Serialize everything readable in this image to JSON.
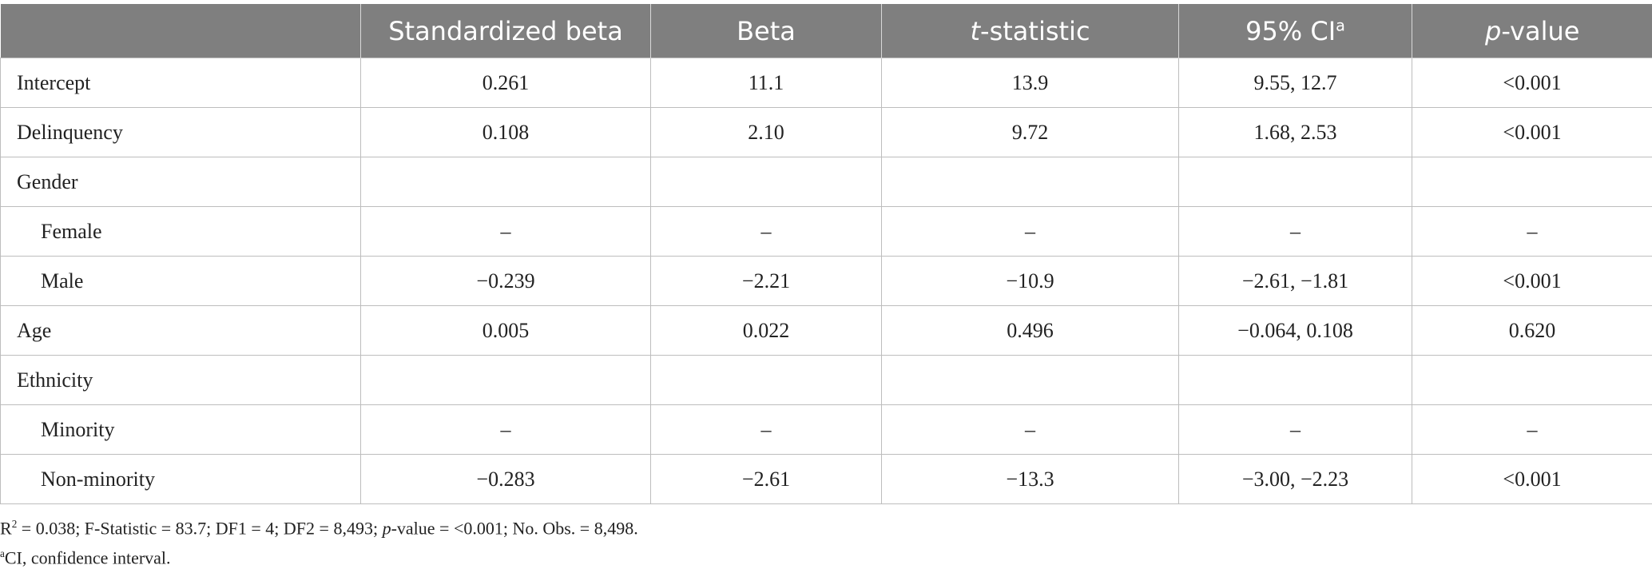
{
  "table": {
    "header": [
      {
        "text": "Standardized beta"
      },
      {
        "text": "Beta"
      },
      {
        "italic": "t",
        "text": "-statistic"
      },
      {
        "text": "95% CI",
        "sup": "a"
      },
      {
        "italic": "p",
        "text": "-value"
      }
    ],
    "rows": [
      {
        "label": "Intercept",
        "indent": false,
        "cells": [
          "0.261",
          "11.1",
          "13.9",
          "9.55, 12.7",
          "<0.001"
        ]
      },
      {
        "label": "Delinquency",
        "indent": false,
        "cells": [
          "0.108",
          "2.10",
          "9.72",
          "1.68, 2.53",
          "<0.001"
        ]
      },
      {
        "label": "Gender",
        "indent": false,
        "cells": [
          null,
          null,
          null,
          null,
          null
        ]
      },
      {
        "label": "Female",
        "indent": true,
        "cells": [
          "–",
          "–",
          "–",
          "–",
          "–"
        ]
      },
      {
        "label": "Male",
        "indent": true,
        "cells": [
          "−0.239",
          "−2.21",
          "−10.9",
          "−2.61, −1.81",
          "<0.001"
        ]
      },
      {
        "label": "Age",
        "indent": false,
        "cells": [
          "0.005",
          "0.022",
          "0.496",
          "−0.064, 0.108",
          "0.620"
        ]
      },
      {
        "label": "Ethnicity",
        "indent": false,
        "cells": [
          null,
          null,
          null,
          null,
          null
        ]
      },
      {
        "label": "Minority",
        "indent": true,
        "cells": [
          "–",
          "–",
          "–",
          "–",
          "–"
        ]
      },
      {
        "label": "Non-minority",
        "indent": true,
        "cells": [
          "−0.283",
          "−2.61",
          "−13.3",
          "−3.00, −2.23",
          "<0.001"
        ]
      }
    ]
  },
  "footnotes": [
    [
      {
        "style": "normal",
        "text": "R"
      },
      {
        "style": "sup",
        "text": "2"
      },
      {
        "style": "normal",
        "text": " = 0.038; F-Statistic = 83.7; DF1 = 4; DF2 = 8,493; "
      },
      {
        "style": "italic",
        "text": "p"
      },
      {
        "style": "normal",
        "text": "-value = <0.001; No. Obs. = 8,498."
      }
    ],
    [
      {
        "style": "sup",
        "text": "a"
      },
      {
        "style": "normal",
        "text": "CI, confidence interval."
      }
    ]
  ]
}
